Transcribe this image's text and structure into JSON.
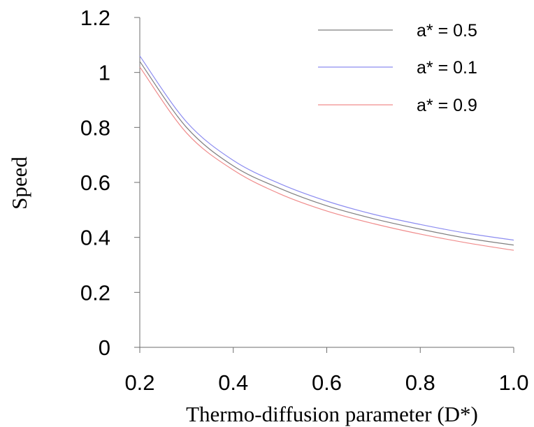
{
  "chart_data": {
    "type": "line",
    "xlabel": "Thermo-diffusion parameter (D*)",
    "ylabel": "Speed",
    "xlim": [
      0.2,
      1.0
    ],
    "ylim": [
      0,
      1.2
    ],
    "x_ticks": [
      "0.2",
      "0.4",
      "0.6",
      "0.8",
      "1.0"
    ],
    "y_ticks": [
      "0",
      "0.2",
      "0.4",
      "0.6",
      "0.8",
      "1",
      "1.2"
    ],
    "grid": false,
    "legend_position": "top-right",
    "x": [
      0.2,
      0.3,
      0.4,
      0.5,
      0.6,
      0.7,
      0.8,
      0.9,
      1.0
    ],
    "series": [
      {
        "name": "a* = 0.5",
        "color": "#7f7f7f",
        "values": [
          1.04,
          0.8,
          0.66,
          0.578,
          0.515,
          0.468,
          0.43,
          0.397,
          0.372
        ]
      },
      {
        "name": "a* = 0.1",
        "color": "#8c8cf0",
        "values": [
          1.06,
          0.82,
          0.68,
          0.595,
          0.532,
          0.484,
          0.447,
          0.415,
          0.39
        ]
      },
      {
        "name": "a* = 0.9",
        "color": "#f08c8c",
        "values": [
          1.02,
          0.78,
          0.645,
          0.558,
          0.496,
          0.45,
          0.412,
          0.38,
          0.353
        ]
      }
    ]
  }
}
